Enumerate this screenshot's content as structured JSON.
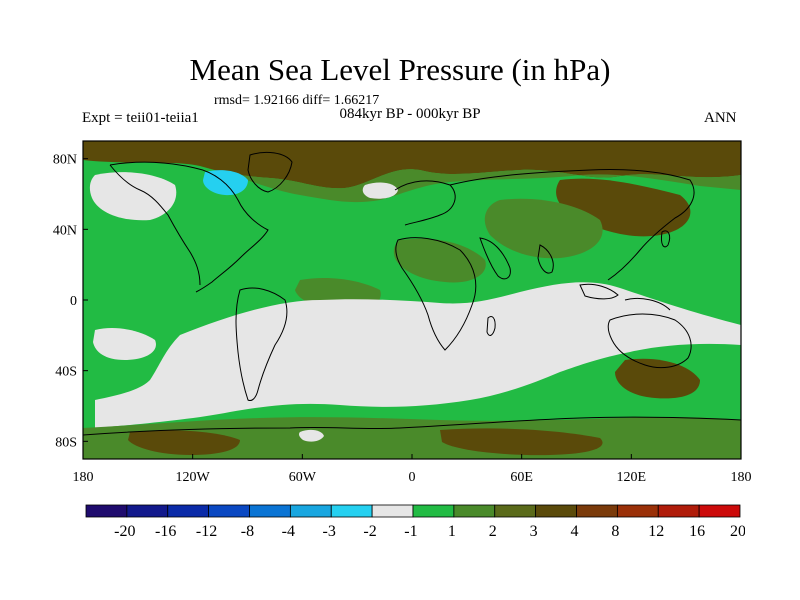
{
  "title": "Mean Sea Level Pressure (in hPa)",
  "stats": "rmsd= 1.92166 diff= 1.66217",
  "experiment": "Expt = teii01-teiia1",
  "period": "084kyr BP - 000kyr BP",
  "season": "ANN",
  "lat_labels": [
    "80N",
    "40N",
    "0",
    "40S",
    "80S"
  ],
  "lat_values": [
    80,
    40,
    0,
    -40,
    -80
  ],
  "lon_labels": [
    "180",
    "120W",
    "60W",
    "0",
    "60E",
    "120E",
    "180"
  ],
  "lon_values": [
    -180,
    -120,
    -60,
    0,
    60,
    120,
    180
  ],
  "colorbar": {
    "labels": [
      "-20",
      "-16",
      "-12",
      "-8",
      "-4",
      "-3",
      "-2",
      "-1",
      "1",
      "2",
      "3",
      "4",
      "8",
      "12",
      "16",
      "20"
    ],
    "colors": [
      "#1f0b6e",
      "#12198c",
      "#0a2aa8",
      "#0a48c2",
      "#0a74d4",
      "#18a6e0",
      "#25d0f0",
      "#e6e6e6",
      "#22bb44",
      "#4a8a2a",
      "#5a6a1a",
      "#5a4a0a",
      "#7a3a0a",
      "#9a3008",
      "#b01c0a",
      "#cc0a0a"
    ]
  },
  "map_colors": {
    "ocean_base": "#22bb44",
    "low_change": "#e6e6e6",
    "mid_change": "#4a8a2a",
    "high_change": "#5a4a0a",
    "negative": "#25d0f0"
  }
}
